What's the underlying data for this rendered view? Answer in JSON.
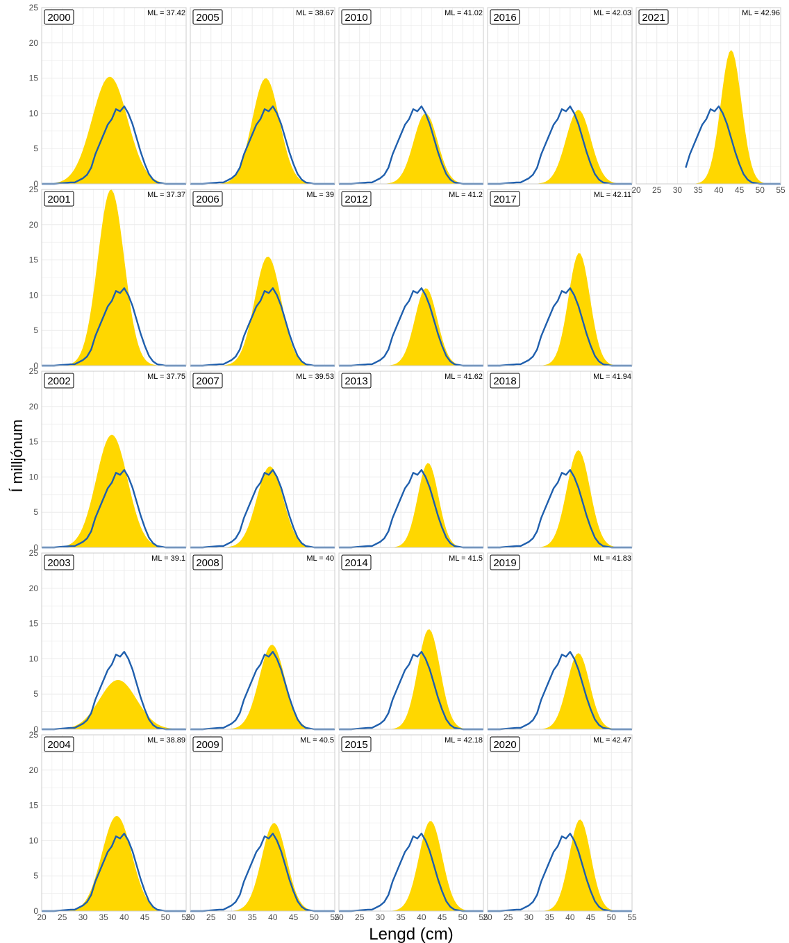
{
  "chart_data": {
    "type": "area",
    "xlabel": "Lengd (cm)",
    "ylabel": "Í milljónum",
    "xlim": [
      20,
      55
    ],
    "ylim": [
      0,
      25
    ],
    "x_ticks": [
      "20",
      "25",
      "30",
      "35",
      "40",
      "45",
      "50",
      "55"
    ],
    "y_ticks": [
      "0",
      "5",
      "10",
      "15",
      "20",
      "25"
    ],
    "colors": {
      "area": "#FFD700",
      "line": "#1F5FAD",
      "grid": "#EBEBEB",
      "border": "#CCCCCC"
    },
    "reference_line": {
      "x": [
        20,
        23,
        25,
        27,
        28,
        29,
        30,
        31,
        32,
        33,
        34,
        35,
        36,
        37,
        38,
        39,
        40,
        41,
        42,
        43,
        44,
        45,
        46,
        47,
        48,
        49,
        50,
        51,
        52,
        53,
        55
      ],
      "y": [
        0,
        0,
        0.1,
        0.2,
        0.2,
        0.5,
        0.8,
        1.3,
        2.3,
        4.2,
        5.6,
        7.0,
        8.4,
        9.2,
        10.6,
        10.3,
        11.0,
        10.0,
        8.5,
        6.5,
        4.5,
        2.8,
        1.4,
        0.6,
        0.2,
        0.1,
        0,
        0,
        0,
        0,
        0
      ]
    },
    "panels": [
      {
        "year": "2000",
        "ml": "ML = 37.42",
        "col": 0,
        "row": 0,
        "peak": 15.2,
        "mu": 36.5,
        "sigma": 4.3
      },
      {
        "year": "2001",
        "ml": "ML = 37.37",
        "col": 0,
        "row": 1,
        "peak": 25.0,
        "mu": 36.8,
        "sigma": 3.2
      },
      {
        "year": "2002",
        "ml": "ML = 37.75",
        "col": 0,
        "row": 2,
        "peak": 16.0,
        "mu": 37.0,
        "sigma": 3.8
      },
      {
        "year": "2003",
        "ml": "ML = 39.1",
        "col": 0,
        "row": 3,
        "peak": 7.0,
        "mu": 38.5,
        "sigma": 4.5
      },
      {
        "year": "2004",
        "ml": "ML = 38.89",
        "col": 0,
        "row": 4,
        "peak": 13.5,
        "mu": 38.2,
        "sigma": 3.6
      },
      {
        "year": "2005",
        "ml": "ML = 38.67",
        "col": 1,
        "row": 0,
        "peak": 15.0,
        "mu": 38.3,
        "sigma": 3.3
      },
      {
        "year": "2006",
        "ml": "ML = 39",
        "col": 1,
        "row": 1,
        "peak": 15.5,
        "mu": 38.8,
        "sigma": 3.2
      },
      {
        "year": "2007",
        "ml": "ML = 39.53",
        "col": 1,
        "row": 2,
        "peak": 11.5,
        "mu": 39.3,
        "sigma": 3.2
      },
      {
        "year": "2008",
        "ml": "ML = 40",
        "col": 1,
        "row": 3,
        "peak": 12.0,
        "mu": 39.8,
        "sigma": 3.1
      },
      {
        "year": "2009",
        "ml": "ML = 40.5",
        "col": 1,
        "row": 4,
        "peak": 12.5,
        "mu": 40.3,
        "sigma": 3.0
      },
      {
        "year": "2010",
        "ml": "ML = 41.02",
        "col": 2,
        "row": 0,
        "peak": 10.0,
        "mu": 41.0,
        "sigma": 2.9
      },
      {
        "year": "2012",
        "ml": "ML = 41.2",
        "col": 2,
        "row": 1,
        "peak": 11.0,
        "mu": 41.1,
        "sigma": 2.7
      },
      {
        "year": "2013",
        "ml": "ML = 41.62",
        "col": 2,
        "row": 2,
        "peak": 12.0,
        "mu": 41.6,
        "sigma": 2.5
      },
      {
        "year": "2014",
        "ml": "ML = 41.5",
        "col": 2,
        "row": 3,
        "peak": 14.2,
        "mu": 41.8,
        "sigma": 2.7
      },
      {
        "year": "2015",
        "ml": "ML = 42.18",
        "col": 2,
        "row": 4,
        "peak": 12.8,
        "mu": 42.2,
        "sigma": 2.8
      },
      {
        "year": "2016",
        "ml": "ML = 42.03",
        "col": 3,
        "row": 0,
        "peak": 10.5,
        "mu": 42.0,
        "sigma": 3.0
      },
      {
        "year": "2017",
        "ml": "ML = 42.11",
        "col": 3,
        "row": 1,
        "peak": 16.0,
        "mu": 42.2,
        "sigma": 2.6
      },
      {
        "year": "2018",
        "ml": "ML = 41.94",
        "col": 3,
        "row": 2,
        "peak": 13.8,
        "mu": 42.0,
        "sigma": 2.8
      },
      {
        "year": "2019",
        "ml": "ML = 41.83",
        "col": 3,
        "row": 3,
        "peak": 10.8,
        "mu": 42.0,
        "sigma": 2.7
      },
      {
        "year": "2020",
        "ml": "ML = 42.47",
        "col": 3,
        "row": 4,
        "peak": 13.0,
        "mu": 42.4,
        "sigma": 2.6
      },
      {
        "year": "2021",
        "ml": "ML = 42.96",
        "col": 4,
        "row": 0,
        "peak": 19.0,
        "mu": 43.0,
        "sigma": 2.5
      }
    ]
  }
}
